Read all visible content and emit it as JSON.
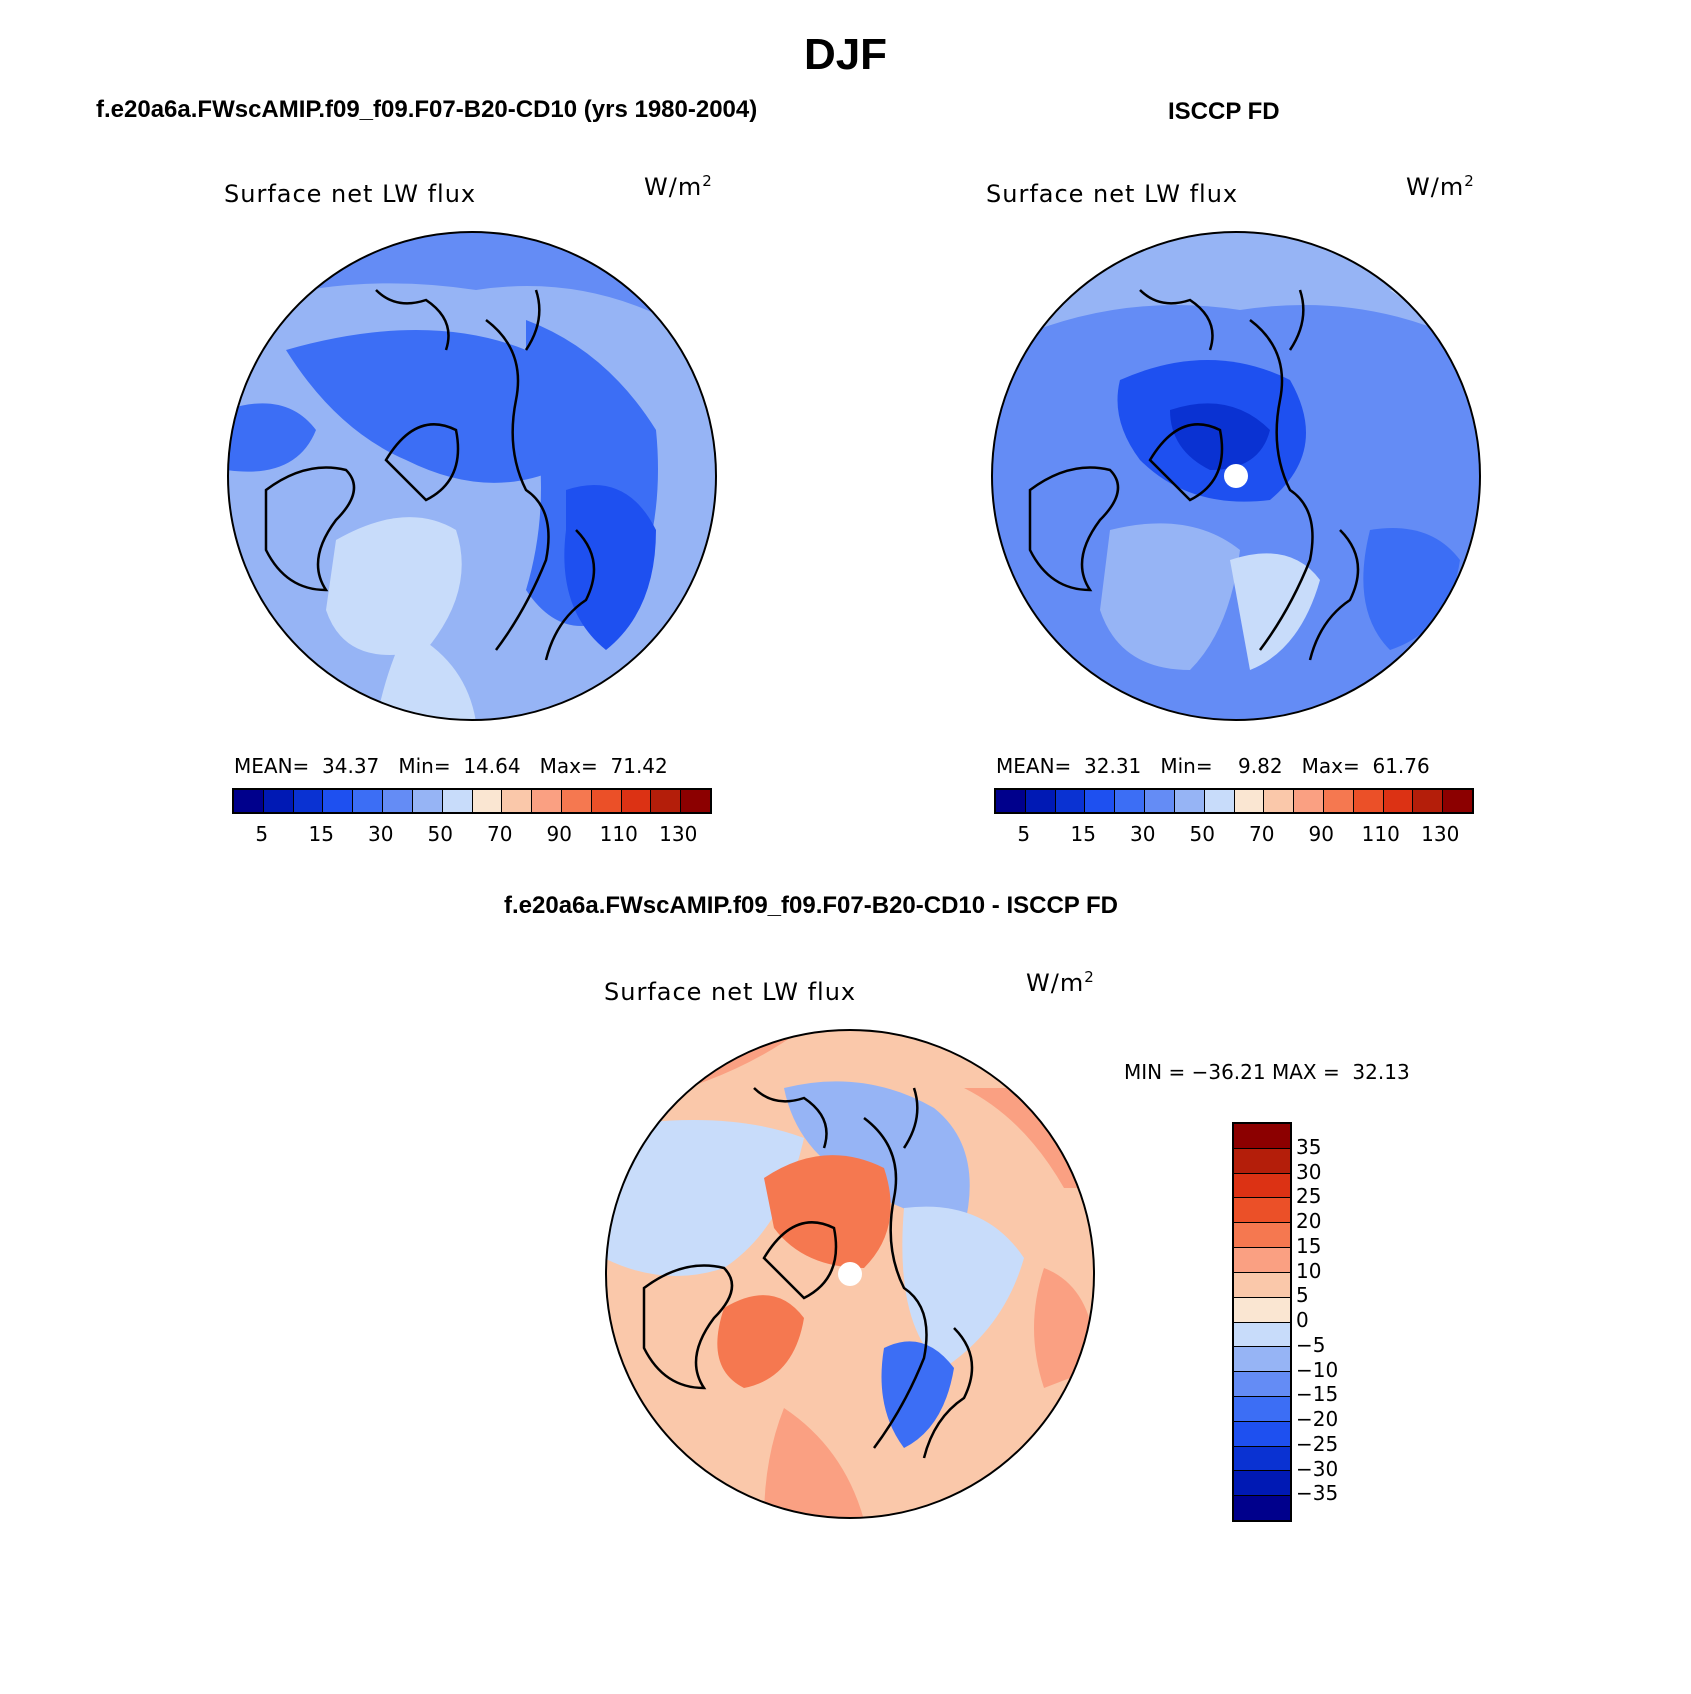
{
  "title": "DJF",
  "panels": [
    {
      "id": "model",
      "heading": "f.e20a6a.FWscAMIP.f09_f09.F07-B20-CD10 (yrs 1980-2004)",
      "variable": "Surface net LW flux",
      "units": "W/m",
      "units_exp": "2",
      "stats": {
        "mean_label": "MEAN=",
        "mean": "34.37",
        "min_label": "Min=",
        "min": "14.64",
        "max_label": "Max=",
        "max": "71.42"
      }
    },
    {
      "id": "obs",
      "heading": "ISCCP FD",
      "variable": "Surface net LW flux",
      "units": "W/m",
      "units_exp": "2",
      "stats": {
        "mean_label": "MEAN=",
        "mean": "32.31",
        "min_label": "Min=",
        "min": "9.82",
        "max_label": "Max=",
        "max": "61.76"
      }
    },
    {
      "id": "diff",
      "heading": "f.e20a6a.FWscAMIP.f09_f09.F07-B20-CD10 - ISCCP FD",
      "variable": "Surface net LW flux",
      "units": "W/m",
      "units_exp": "2",
      "stats_line": "MIN = −36.21 MAX =  32.13"
    }
  ],
  "colorbar_abs": {
    "colors": [
      "#00008c",
      "#0019b4",
      "#0a32d2",
      "#1e50f0",
      "#3c6ef5",
      "#648cf5",
      "#96b4f5",
      "#c8dcfa",
      "#fae6d2",
      "#fac8aa",
      "#faa082",
      "#f57850",
      "#eb5028",
      "#dc3214",
      "#b41e0a",
      "#8c0000"
    ],
    "tick_labels": [
      "5",
      "15",
      "30",
      "50",
      "70",
      "90",
      "110",
      "130"
    ]
  },
  "colorbar_diff": {
    "colors": [
      "#8c0000",
      "#b41e0a",
      "#dc3214",
      "#eb5028",
      "#f57850",
      "#faa082",
      "#fac8aa",
      "#fae6d2",
      "#c8dcfa",
      "#96b4f5",
      "#648cf5",
      "#3c6ef5",
      "#1e50f0",
      "#0a32d2",
      "#0019b4",
      "#00008c"
    ],
    "tick_labels": [
      "35",
      "30",
      "25",
      "20",
      "15",
      "10",
      "5",
      "0",
      "−5",
      "−10",
      "−15",
      "−20",
      "−25",
      "−30",
      "−35"
    ]
  }
}
